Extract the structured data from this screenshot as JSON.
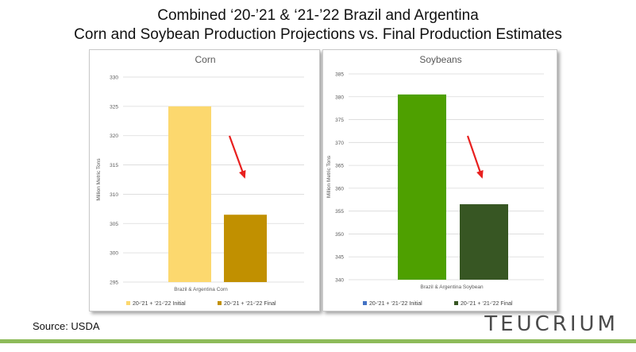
{
  "title_line1": "Combined ‘20-’21 & ‘21-’22 Brazil and Argentina",
  "title_line2": "Corn and Soybean Production Projections vs. Final Production Estimates",
  "source": "Source: USDA",
  "logo": "TEUCRIUM",
  "colors": {
    "arrow": "#e8201f",
    "gridline": "#d9d9d9",
    "brand_bar": "#8dbb5a"
  },
  "chart_data": [
    {
      "type": "bar",
      "title": "Corn",
      "ylabel": "Million Metric Tons",
      "xlabel": "Brazil & Argentina Corn",
      "ylim": [
        295,
        330
      ],
      "yticks": [
        295,
        300,
        305,
        310,
        315,
        320,
        325,
        330
      ],
      "grid": true,
      "legend_position": "bottom",
      "annotation": "red-arrow-pointing-down",
      "series": [
        {
          "name": "20-’21 + ‘21-’22 Initial",
          "value": 325,
          "color": "#fcd86e"
        },
        {
          "name": "20-’21 + ‘21-’22 Final",
          "value": 306.5,
          "color": "#c19000"
        }
      ]
    },
    {
      "type": "bar",
      "title": "Soybeans",
      "ylabel": "Million Metric Tons",
      "xlabel": "Brazil & Argentina Soybean",
      "ylim": [
        340,
        385
      ],
      "yticks": [
        340,
        345,
        350,
        355,
        360,
        365,
        370,
        375,
        380,
        385
      ],
      "grid": true,
      "legend_position": "bottom",
      "annotation": "red-arrow-pointing-down",
      "series": [
        {
          "name": "20-’21 + ‘21-’22 Initial",
          "value": 380.5,
          "color": "#4ea000"
        },
        {
          "name": "20-’21 + ‘21-’22 Final",
          "value": 356.5,
          "color": "#375623"
        }
      ],
      "legend_colors": [
        "#4472c4",
        "#375623"
      ]
    }
  ]
}
